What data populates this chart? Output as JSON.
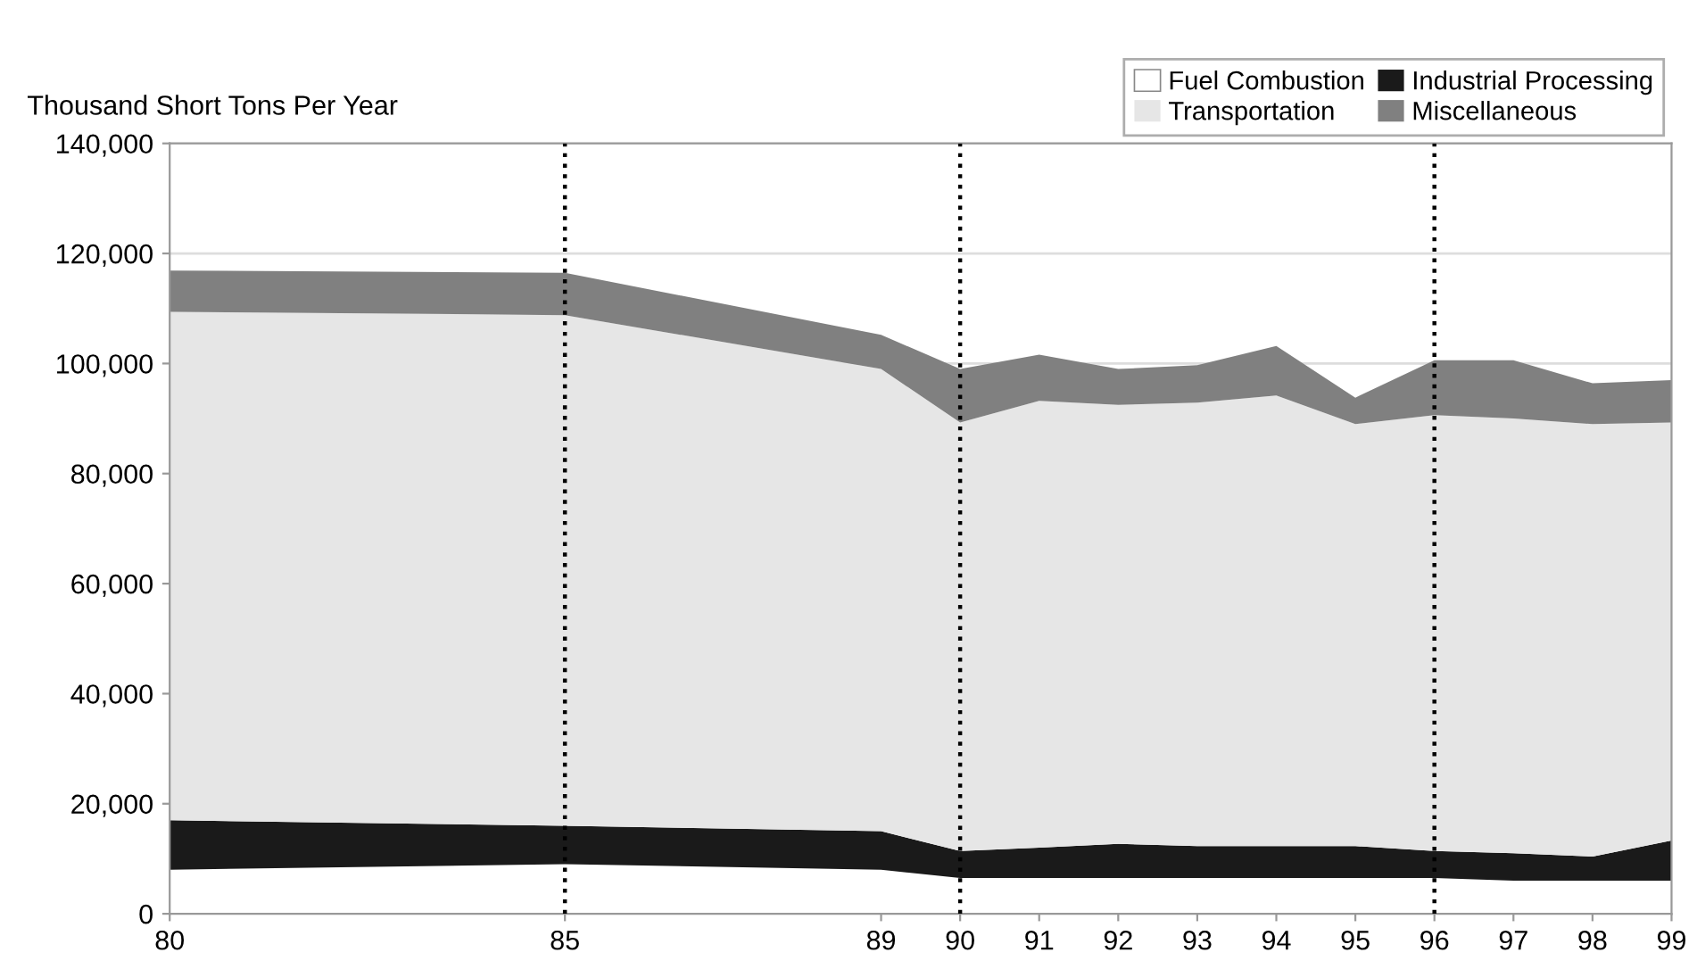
{
  "chart_data": {
    "type": "area",
    "stacked": true,
    "ylabel": "Thousand Short Tons Per Year",
    "x": [
      80,
      85,
      89,
      90,
      91,
      92,
      93,
      94,
      95,
      96,
      97,
      98,
      99
    ],
    "xlim": [
      80,
      99
    ],
    "xticks": [
      80,
      85,
      89,
      90,
      91,
      92,
      93,
      94,
      95,
      96,
      97,
      98,
      99
    ],
    "ylim": [
      0,
      140000
    ],
    "yticks": [
      {
        "value": 0,
        "label": "0"
      },
      {
        "value": 20000,
        "label": "20,000"
      },
      {
        "value": 40000,
        "label": "40,000"
      },
      {
        "value": 60000,
        "label": "60,000"
      },
      {
        "value": 80000,
        "label": "80,000"
      },
      {
        "value": 100000,
        "label": "100,000"
      },
      {
        "value": 120000,
        "label": "120,000"
      },
      {
        "value": 140000,
        "label": "140,000"
      }
    ],
    "grid": "y",
    "legend": "top right",
    "series": [
      {
        "name": "Fuel Combustion",
        "color": "#ffffff",
        "values": [
          8000,
          9000,
          8000,
          6500,
          6500,
          6500,
          6500,
          6500,
          6500,
          6500,
          6000,
          6000,
          6000
        ]
      },
      {
        "name": "Industrial Processing",
        "color": "#1a1a1a",
        "values": [
          9000,
          7000,
          7000,
          4900,
          5500,
          6200,
          5800,
          5800,
          5800,
          4900,
          5000,
          4400,
          7300
        ]
      },
      {
        "name": "Transportation",
        "color": "#e6e6e6",
        "values": [
          92400,
          92800,
          84000,
          77900,
          81200,
          79800,
          80600,
          81900,
          76700,
          79200,
          79000,
          78600,
          76000
        ]
      },
      {
        "name": "Miscellaneous",
        "color": "#808080",
        "values": [
          7500,
          7700,
          6200,
          9700,
          8400,
          6500,
          6800,
          9000,
          4800,
          10000,
          10600,
          7400,
          7700
        ]
      }
    ],
    "ref_lines": [
      {
        "axis": "x",
        "value": 85,
        "line_style": "dotted",
        "color": "#000000"
      },
      {
        "axis": "x",
        "value": 90,
        "line_style": "dotted",
        "color": "#000000"
      },
      {
        "axis": "x",
        "value": 96,
        "line_style": "dotted",
        "color": "#000000"
      }
    ]
  }
}
